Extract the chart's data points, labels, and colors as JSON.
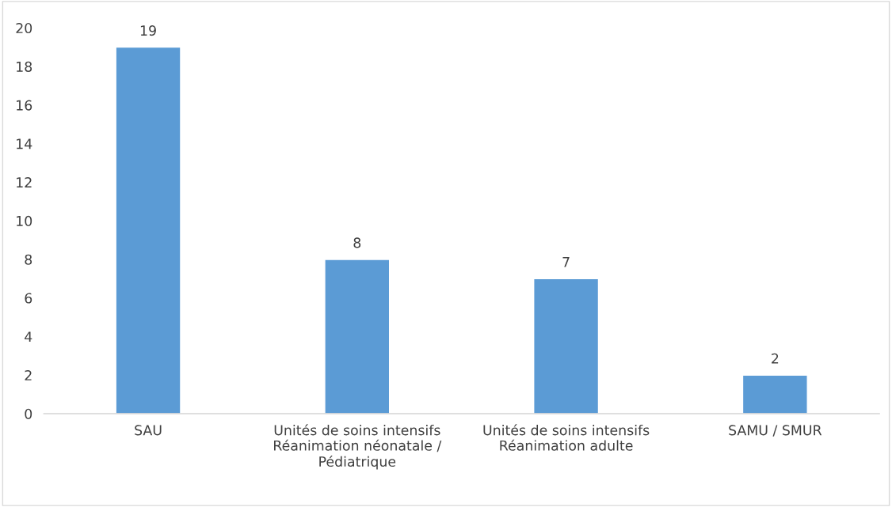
{
  "chart_data": {
    "type": "bar",
    "categories": [
      "SAU",
      "Unités de soins intensifs\nRéanimation néonatale /\nPédiatrique",
      "Unités de soins intensifs\nRéanimation adulte",
      "SAMU / SMUR"
    ],
    "values": [
      19,
      8,
      7,
      2
    ],
    "color": "#5b9bd5",
    "ylim": [
      0,
      20
    ],
    "yticks": [
      0,
      2,
      4,
      6,
      8,
      10,
      12,
      14,
      16,
      18,
      20
    ],
    "grid": false,
    "data_labels": true
  }
}
